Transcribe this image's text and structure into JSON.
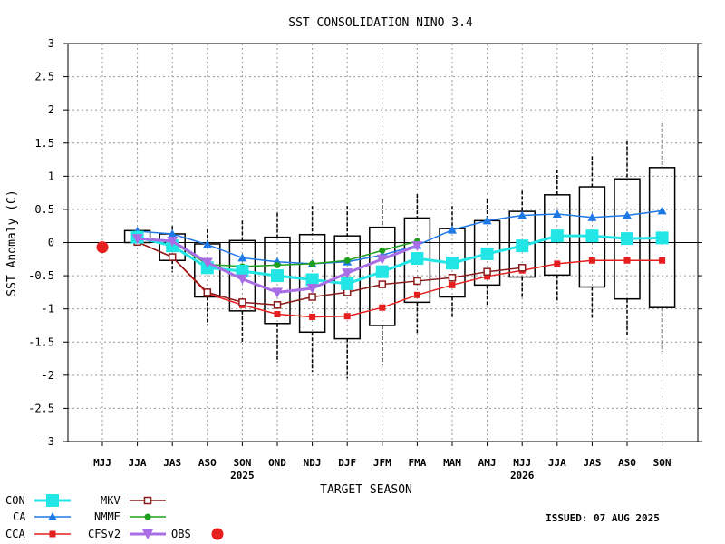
{
  "chart_data": {
    "type": "line",
    "title": "SST CONSOLIDATION NINO 3.4",
    "xlabel": "TARGET SEASON",
    "ylabel": "SST Anomaly (C)",
    "ylim": [
      -3,
      3
    ],
    "yticks": [
      "3",
      "2.5",
      "2",
      "1.5",
      "1",
      "0.5",
      "0",
      "-0.5",
      "-1",
      "-1.5",
      "-2",
      "-2.5",
      "-3"
    ],
    "categories": [
      "MJJ",
      "JJA",
      "JAS",
      "ASO",
      "SON",
      "OND",
      "NDJ",
      "DJF",
      "JFM",
      "FMA",
      "MAM",
      "AMJ",
      "MJJ",
      "JJA",
      "JAS",
      "ASO",
      "SON"
    ],
    "year_labels": [
      {
        "text": "2025",
        "at": "SON"
      },
      {
        "text": "2026",
        "at": "MJJ"
      }
    ],
    "grid": true,
    "issued": "ISSUED: 07 AUG 2025",
    "boxes": [
      {
        "season": "JJA",
        "low": 0.0,
        "high": 0.18,
        "whisker_low": 0.0,
        "whisker_high": 0.18
      },
      {
        "season": "JAS",
        "low": -0.27,
        "high": 0.13,
        "whisker_low": -0.45,
        "whisker_high": 0.25
      },
      {
        "season": "ASO",
        "low": -0.82,
        "high": -0.02,
        "whisker_low": -1.25,
        "whisker_high": 0.2
      },
      {
        "season": "SON",
        "low": -1.03,
        "high": 0.03,
        "whisker_low": -1.52,
        "whisker_high": 0.33
      },
      {
        "season": "OND",
        "low": -1.22,
        "high": 0.08,
        "whisker_low": -1.8,
        "whisker_high": 0.45
      },
      {
        "season": "NDJ",
        "low": -1.35,
        "high": 0.12,
        "whisker_low": -1.95,
        "whisker_high": 0.55
      },
      {
        "season": "DJF",
        "low": -1.45,
        "high": 0.1,
        "whisker_low": -2.05,
        "whisker_high": 0.55
      },
      {
        "season": "JFM",
        "low": -1.25,
        "high": 0.23,
        "whisker_low": -1.85,
        "whisker_high": 0.65
      },
      {
        "season": "FMA",
        "low": -0.9,
        "high": 0.37,
        "whisker_low": -1.38,
        "whisker_high": 0.73
      },
      {
        "season": "MAM",
        "low": -0.82,
        "high": 0.21,
        "whisker_low": -1.12,
        "whisker_high": 0.55
      },
      {
        "season": "AMJ",
        "low": -0.64,
        "high": 0.33,
        "whisker_low": -0.95,
        "whisker_high": 0.65
      },
      {
        "season": "MJJ",
        "low": -0.52,
        "high": 0.47,
        "whisker_low": -0.85,
        "whisker_high": 0.78
      },
      {
        "season": "JJA",
        "low": -0.49,
        "high": 0.72,
        "whisker_low": -0.9,
        "whisker_high": 1.1
      },
      {
        "season": "JAS",
        "low": -0.67,
        "high": 0.84,
        "whisker_low": -1.15,
        "whisker_high": 1.3
      },
      {
        "season": "ASO",
        "low": -0.85,
        "high": 0.96,
        "whisker_low": -1.42,
        "whisker_high": 1.53
      },
      {
        "season": "SON",
        "low": -0.98,
        "high": 1.13,
        "whisker_low": -1.65,
        "whisker_high": 1.8
      }
    ],
    "series": [
      {
        "name": "CON",
        "color": "#22e5e5",
        "marker": "square-large",
        "width": 3,
        "values": [
          null,
          0.08,
          -0.05,
          -0.38,
          -0.43,
          -0.5,
          -0.56,
          -0.62,
          -0.44,
          -0.24,
          -0.31,
          -0.17,
          -0.05,
          0.1,
          0.1,
          0.06,
          0.07
        ]
      },
      {
        "name": "CA",
        "color": "#1e78e6",
        "marker": "triangle",
        "width": 1.5,
        "values": [
          null,
          0.17,
          0.13,
          -0.03,
          -0.23,
          -0.29,
          -0.32,
          -0.29,
          -0.19,
          -0.04,
          0.19,
          0.33,
          0.41,
          0.43,
          0.38,
          0.41,
          0.48
        ]
      },
      {
        "name": "CCA",
        "color": "#e61e1e",
        "marker": "square",
        "width": 1.5,
        "values": [
          null,
          0.01,
          -0.22,
          -0.77,
          -0.94,
          -1.08,
          -1.12,
          -1.11,
          -0.98,
          -0.79,
          -0.64,
          -0.51,
          -0.42,
          -0.32,
          -0.27,
          -0.27,
          -0.27
        ]
      },
      {
        "name": "MKV",
        "color": "#8b1a1a",
        "marker": "square-open",
        "width": 1.5,
        "values": [
          null,
          0.01,
          -0.22,
          -0.75,
          -0.9,
          -0.94,
          -0.82,
          -0.75,
          -0.63,
          -0.58,
          -0.53,
          -0.44,
          -0.38,
          null,
          null,
          null,
          null
        ]
      },
      {
        "name": "NMME",
        "color": "#1ea01e",
        "marker": "dot",
        "width": 1.5,
        "values": [
          null,
          0.06,
          0.01,
          -0.33,
          -0.36,
          -0.34,
          -0.32,
          -0.27,
          -0.12,
          0.02,
          null,
          null,
          null,
          null,
          null,
          null,
          null
        ]
      },
      {
        "name": "CFSv2",
        "color": "#a96ee6",
        "marker": "triangle-down",
        "width": 3,
        "values": [
          null,
          0.06,
          0.02,
          -0.3,
          -0.55,
          -0.75,
          -0.69,
          -0.46,
          -0.25,
          -0.05,
          null,
          null,
          null,
          null,
          null,
          null,
          null
        ]
      },
      {
        "name": "OBS",
        "color": "#e61e1e",
        "marker": "circle",
        "width": 0,
        "values": [
          -0.07,
          null,
          null,
          null,
          null,
          null,
          null,
          null,
          null,
          null,
          null,
          null,
          null,
          null,
          null,
          null,
          null
        ]
      }
    ],
    "legend": {
      "placement": "bottom-left"
    }
  }
}
